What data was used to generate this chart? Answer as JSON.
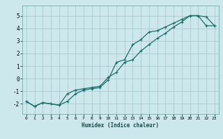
{
  "xlabel": "Humidex (Indice chaleur)",
  "ylabel": "",
  "bg_color": "#cce8ec",
  "grid_color": "#aacccc",
  "line_color": "#1a6e6a",
  "xlim": [
    -0.5,
    23.5
  ],
  "ylim": [
    -2.8,
    5.8
  ],
  "xticks": [
    0,
    1,
    2,
    3,
    4,
    5,
    6,
    7,
    8,
    9,
    10,
    11,
    12,
    13,
    14,
    15,
    16,
    17,
    18,
    19,
    20,
    21,
    22,
    23
  ],
  "yticks": [
    -2,
    -1,
    0,
    1,
    2,
    3,
    4,
    5
  ],
  "line1_x": [
    0,
    1,
    2,
    3,
    4,
    5,
    6,
    7,
    8,
    9,
    10,
    11,
    12,
    13,
    14,
    15,
    16,
    17,
    18,
    19,
    20,
    21,
    22,
    23
  ],
  "line1_y": [
    -1.8,
    -2.2,
    -1.9,
    -2.0,
    -2.1,
    -1.8,
    -1.2,
    -0.9,
    -0.8,
    -0.7,
    -0.1,
    1.3,
    1.5,
    2.7,
    3.1,
    3.7,
    3.8,
    4.1,
    4.4,
    4.7,
    5.0,
    5.0,
    4.9,
    4.2
  ],
  "line2_x": [
    0,
    1,
    2,
    3,
    4,
    5,
    6,
    7,
    8,
    9,
    10,
    11,
    12,
    13,
    14,
    15,
    16,
    17,
    18,
    19,
    20,
    21,
    22,
    23
  ],
  "line2_y": [
    -1.8,
    -2.2,
    -1.9,
    -2.0,
    -2.1,
    -1.2,
    -0.9,
    -0.8,
    -0.7,
    -0.6,
    0.1,
    0.5,
    1.3,
    1.5,
    2.2,
    2.7,
    3.2,
    3.6,
    4.1,
    4.5,
    5.0,
    5.0,
    4.2,
    4.2
  ]
}
